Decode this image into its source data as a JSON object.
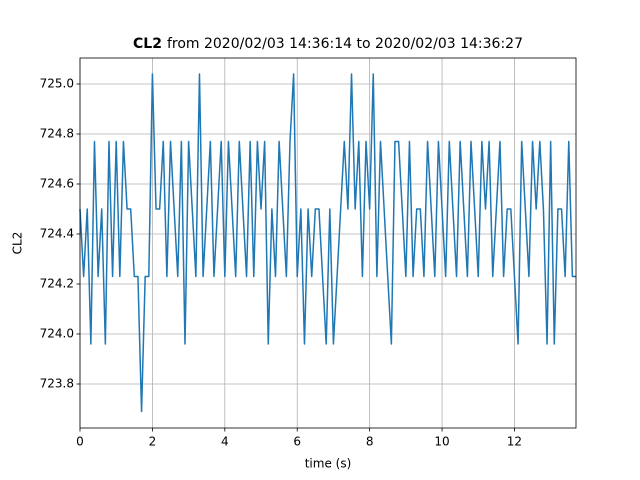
{
  "chart_data": {
    "type": "line",
    "title": {
      "name": "CL2",
      "text": "from 2020/02/03 14:36:14 to 2020/02/03 14:36:27"
    },
    "xlabel": "time (s)",
    "ylabel": "CL2",
    "color": "#1f77b4",
    "grid": true,
    "xlim": [
      0,
      13.7
    ],
    "ylim": [
      723.624,
      725.104
    ],
    "xticks": [
      0,
      2,
      4,
      6,
      8,
      10,
      12
    ],
    "yticks": [
      723.8,
      {
        "value": 724.0,
        "label": "724.0"
      },
      724.2,
      724.4,
      724.6,
      724.8,
      {
        "value": 725.0,
        "label": "725.0"
      }
    ],
    "x": [
      0,
      0.1,
      0.2,
      0.3,
      0.4,
      0.5,
      0.6,
      0.7,
      0.8,
      0.9,
      1,
      1.1,
      1.2,
      1.3,
      1.4,
      1.5,
      1.6,
      1.7,
      1.8,
      1.9,
      2,
      2.1,
      2.2,
      2.3,
      2.4,
      2.5,
      2.6,
      2.7,
      2.8,
      2.9,
      3,
      3.1,
      3.2,
      3.3,
      3.4,
      3.5,
      3.6,
      3.7,
      3.8,
      3.9,
      4,
      4.1,
      4.2,
      4.3,
      4.4,
      4.5,
      4.6,
      4.7,
      4.8,
      4.9,
      5,
      5.1,
      5.2,
      5.3,
      5.4,
      5.5,
      5.6,
      5.7,
      5.8,
      5.9,
      6,
      6.1,
      6.2,
      6.3,
      6.4,
      6.5,
      6.6,
      6.7,
      6.8,
      6.9,
      7,
      7.1,
      7.2,
      7.3,
      7.4,
      7.5,
      7.6,
      7.7,
      7.8,
      7.9,
      8,
      8.1,
      8.2,
      8.3,
      8.4,
      8.5,
      8.6,
      8.7,
      8.8,
      8.9,
      9,
      9.1,
      9.2,
      9.3,
      9.4,
      9.5,
      9.6,
      9.7,
      9.8,
      9.9,
      10,
      10.1,
      10.2,
      10.3,
      10.4,
      10.5,
      10.6,
      10.7,
      10.8,
      10.9,
      11,
      11.1,
      11.2,
      11.3,
      11.4,
      11.5,
      11.6,
      11.7,
      11.8,
      11.9,
      12,
      12.1,
      12.2,
      12.3,
      12.4,
      12.5,
      12.6,
      12.7,
      12.8,
      12.9,
      13,
      13.1,
      13.2,
      13.3,
      13.4,
      13.5,
      13.6,
      13.7
    ],
    "values": [
      724.5,
      724.23,
      724.5,
      723.96,
      724.77,
      724.23,
      724.5,
      723.96,
      724.77,
      724.23,
      724.77,
      724.23,
      724.77,
      724.5,
      724.5,
      724.23,
      724.23,
      723.69,
      724.23,
      724.23,
      725.04,
      724.5,
      724.5,
      724.77,
      724.23,
      724.77,
      724.5,
      724.23,
      724.77,
      723.96,
      724.77,
      724.5,
      724.23,
      725.04,
      724.23,
      724.5,
      724.77,
      724.23,
      724.5,
      724.77,
      724.23,
      724.77,
      724.5,
      724.23,
      724.77,
      724.5,
      724.23,
      724.77,
      724.23,
      724.77,
      724.5,
      724.77,
      723.96,
      724.5,
      724.23,
      724.77,
      724.5,
      724.23,
      724.77,
      725.04,
      724.23,
      724.5,
      723.96,
      724.5,
      724.23,
      724.5,
      724.5,
      724.23,
      723.96,
      724.5,
      723.96,
      724.23,
      724.5,
      724.77,
      724.5,
      725.04,
      724.5,
      724.77,
      724.23,
      724.77,
      724.5,
      725.04,
      724.23,
      724.77,
      724.5,
      724.23,
      723.96,
      724.77,
      724.77,
      724.5,
      724.23,
      724.77,
      724.23,
      724.5,
      724.5,
      724.23,
      724.77,
      724.5,
      724.23,
      724.77,
      724.5,
      724.23,
      724.77,
      724.5,
      724.23,
      724.77,
      724.5,
      724.23,
      724.77,
      724.5,
      724.23,
      724.77,
      724.5,
      724.77,
      724.23,
      724.5,
      724.77,
      724.23,
      724.5,
      724.5,
      724.23,
      723.96,
      724.77,
      724.5,
      724.23,
      724.77,
      724.5,
      724.77,
      724.5,
      723.96,
      724.77,
      723.96,
      724.5,
      724.5,
      724.23,
      724.77,
      724.23,
      724.23
    ]
  }
}
